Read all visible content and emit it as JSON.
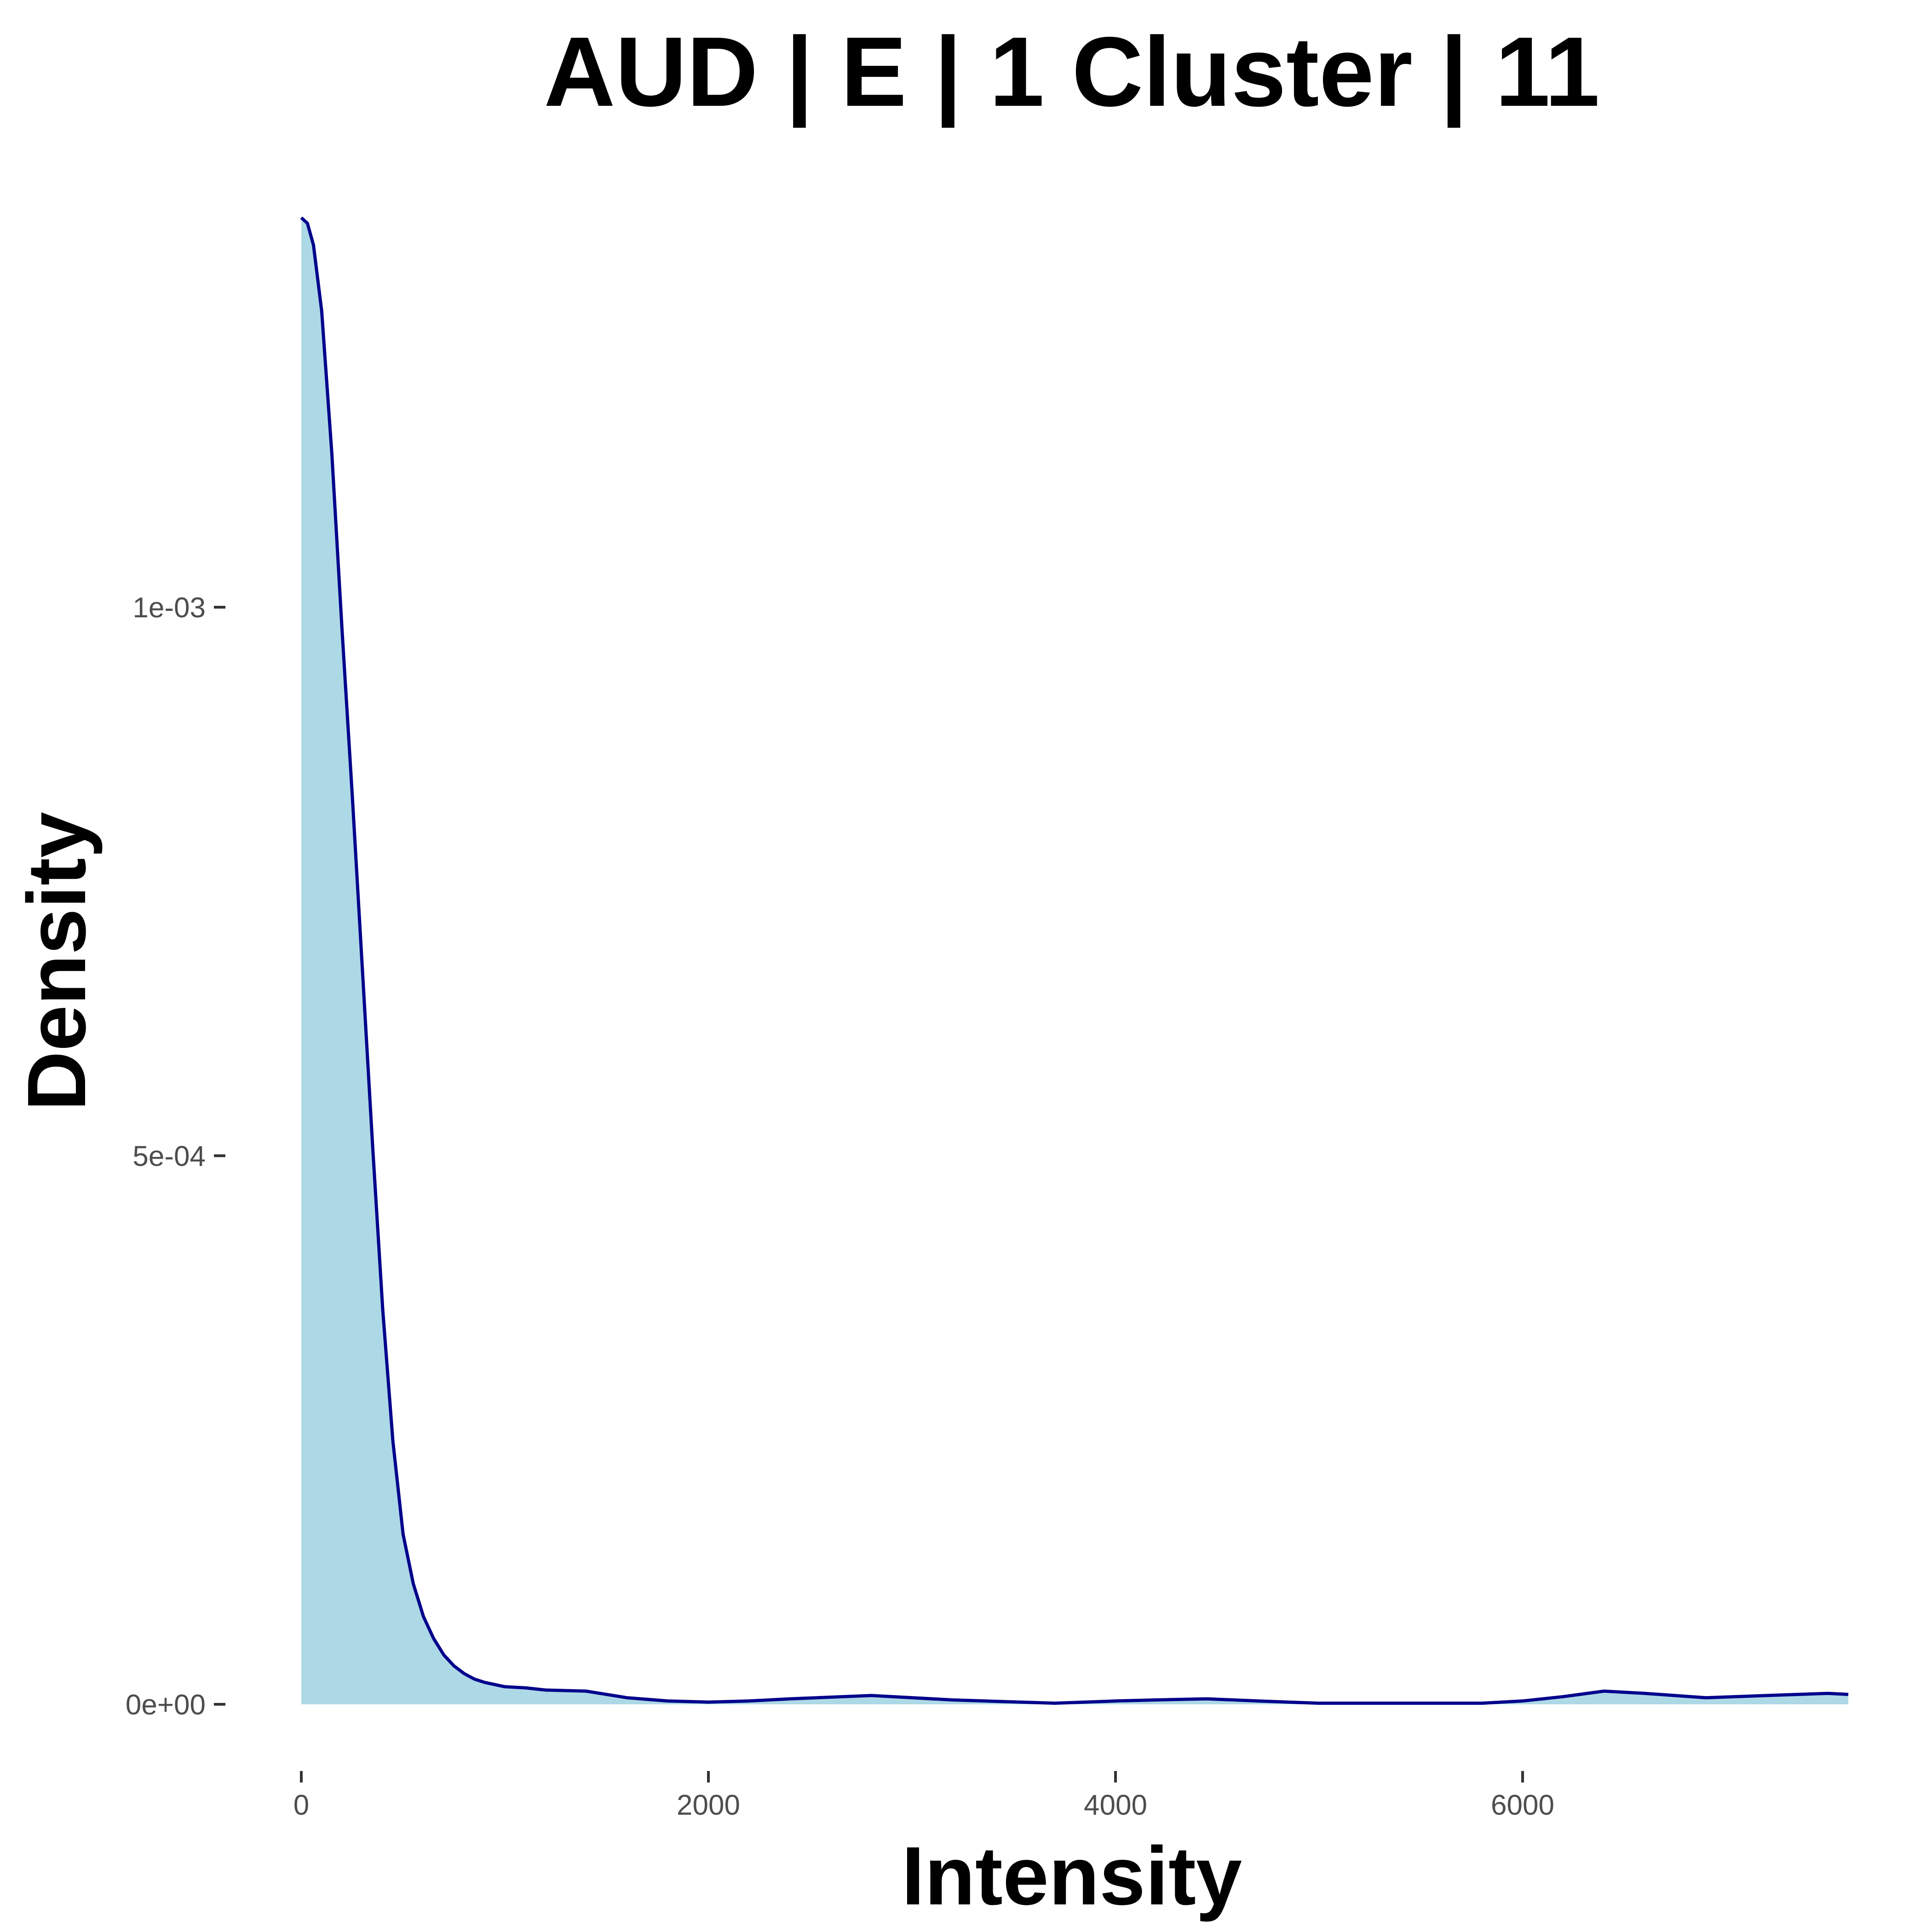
{
  "chart_data": {
    "type": "area",
    "title": "AUD | E | 1 Cluster |  11",
    "xlabel": "Intensity",
    "ylabel": "Density",
    "xlim": [
      -80,
      7700
    ],
    "ylim": [
      -7e-05,
      0.0014
    ],
    "grid": false,
    "fill_color": "#add8e6",
    "line_color": "#00008b",
    "x_ticks": [
      {
        "value": 0,
        "label": "0"
      },
      {
        "value": 2000,
        "label": "2000"
      },
      {
        "value": 4000,
        "label": "4000"
      },
      {
        "value": 6000,
        "label": "6000"
      }
    ],
    "y_ticks": [
      {
        "value": 0,
        "label": "0e+00"
      },
      {
        "value": 0.0005,
        "label": "5e-04"
      },
      {
        "value": 0.001,
        "label": "1e-03"
      }
    ],
    "series": [
      {
        "x": [
          0,
          30,
          60,
          100,
          150,
          200,
          250,
          300,
          350,
          400,
          450,
          500,
          550,
          600,
          650,
          700,
          750,
          800,
          850,
          900,
          950,
          1000,
          1100,
          1200,
          1400,
          1600,
          1800,
          2000,
          2200,
          2400,
          2800,
          3200,
          3700,
          4000,
          4200,
          4450,
          4700,
          5000,
          5400,
          5800,
          6000,
          6200,
          6400,
          6600,
          6900,
          7200,
          7500,
          7600
        ],
        "y": [
          0.001355,
          0.00135,
          0.00133,
          0.00127,
          0.00114,
          0.00098,
          0.00083,
          0.00067,
          0.00051,
          0.00036,
          0.00024,
          0.000155,
          0.00011,
          8e-05,
          6e-05,
          4.5e-05,
          3.5e-05,
          2.8e-05,
          2.3e-05,
          2e-05,
          1.8e-05,
          1.6e-05,
          1.5e-05,
          1.3e-05,
          1.2e-05,
          6e-06,
          3e-06,
          2e-06,
          3e-06,
          5e-06,
          8e-06,
          4e-06,
          1e-06,
          3e-06,
          4e-06,
          5e-06,
          3e-06,
          1e-06,
          1e-06,
          1e-06,
          3e-06,
          7e-06,
          1.2e-05,
          1e-05,
          6e-06,
          8e-06,
          1e-05,
          9e-06
        ]
      }
    ]
  }
}
